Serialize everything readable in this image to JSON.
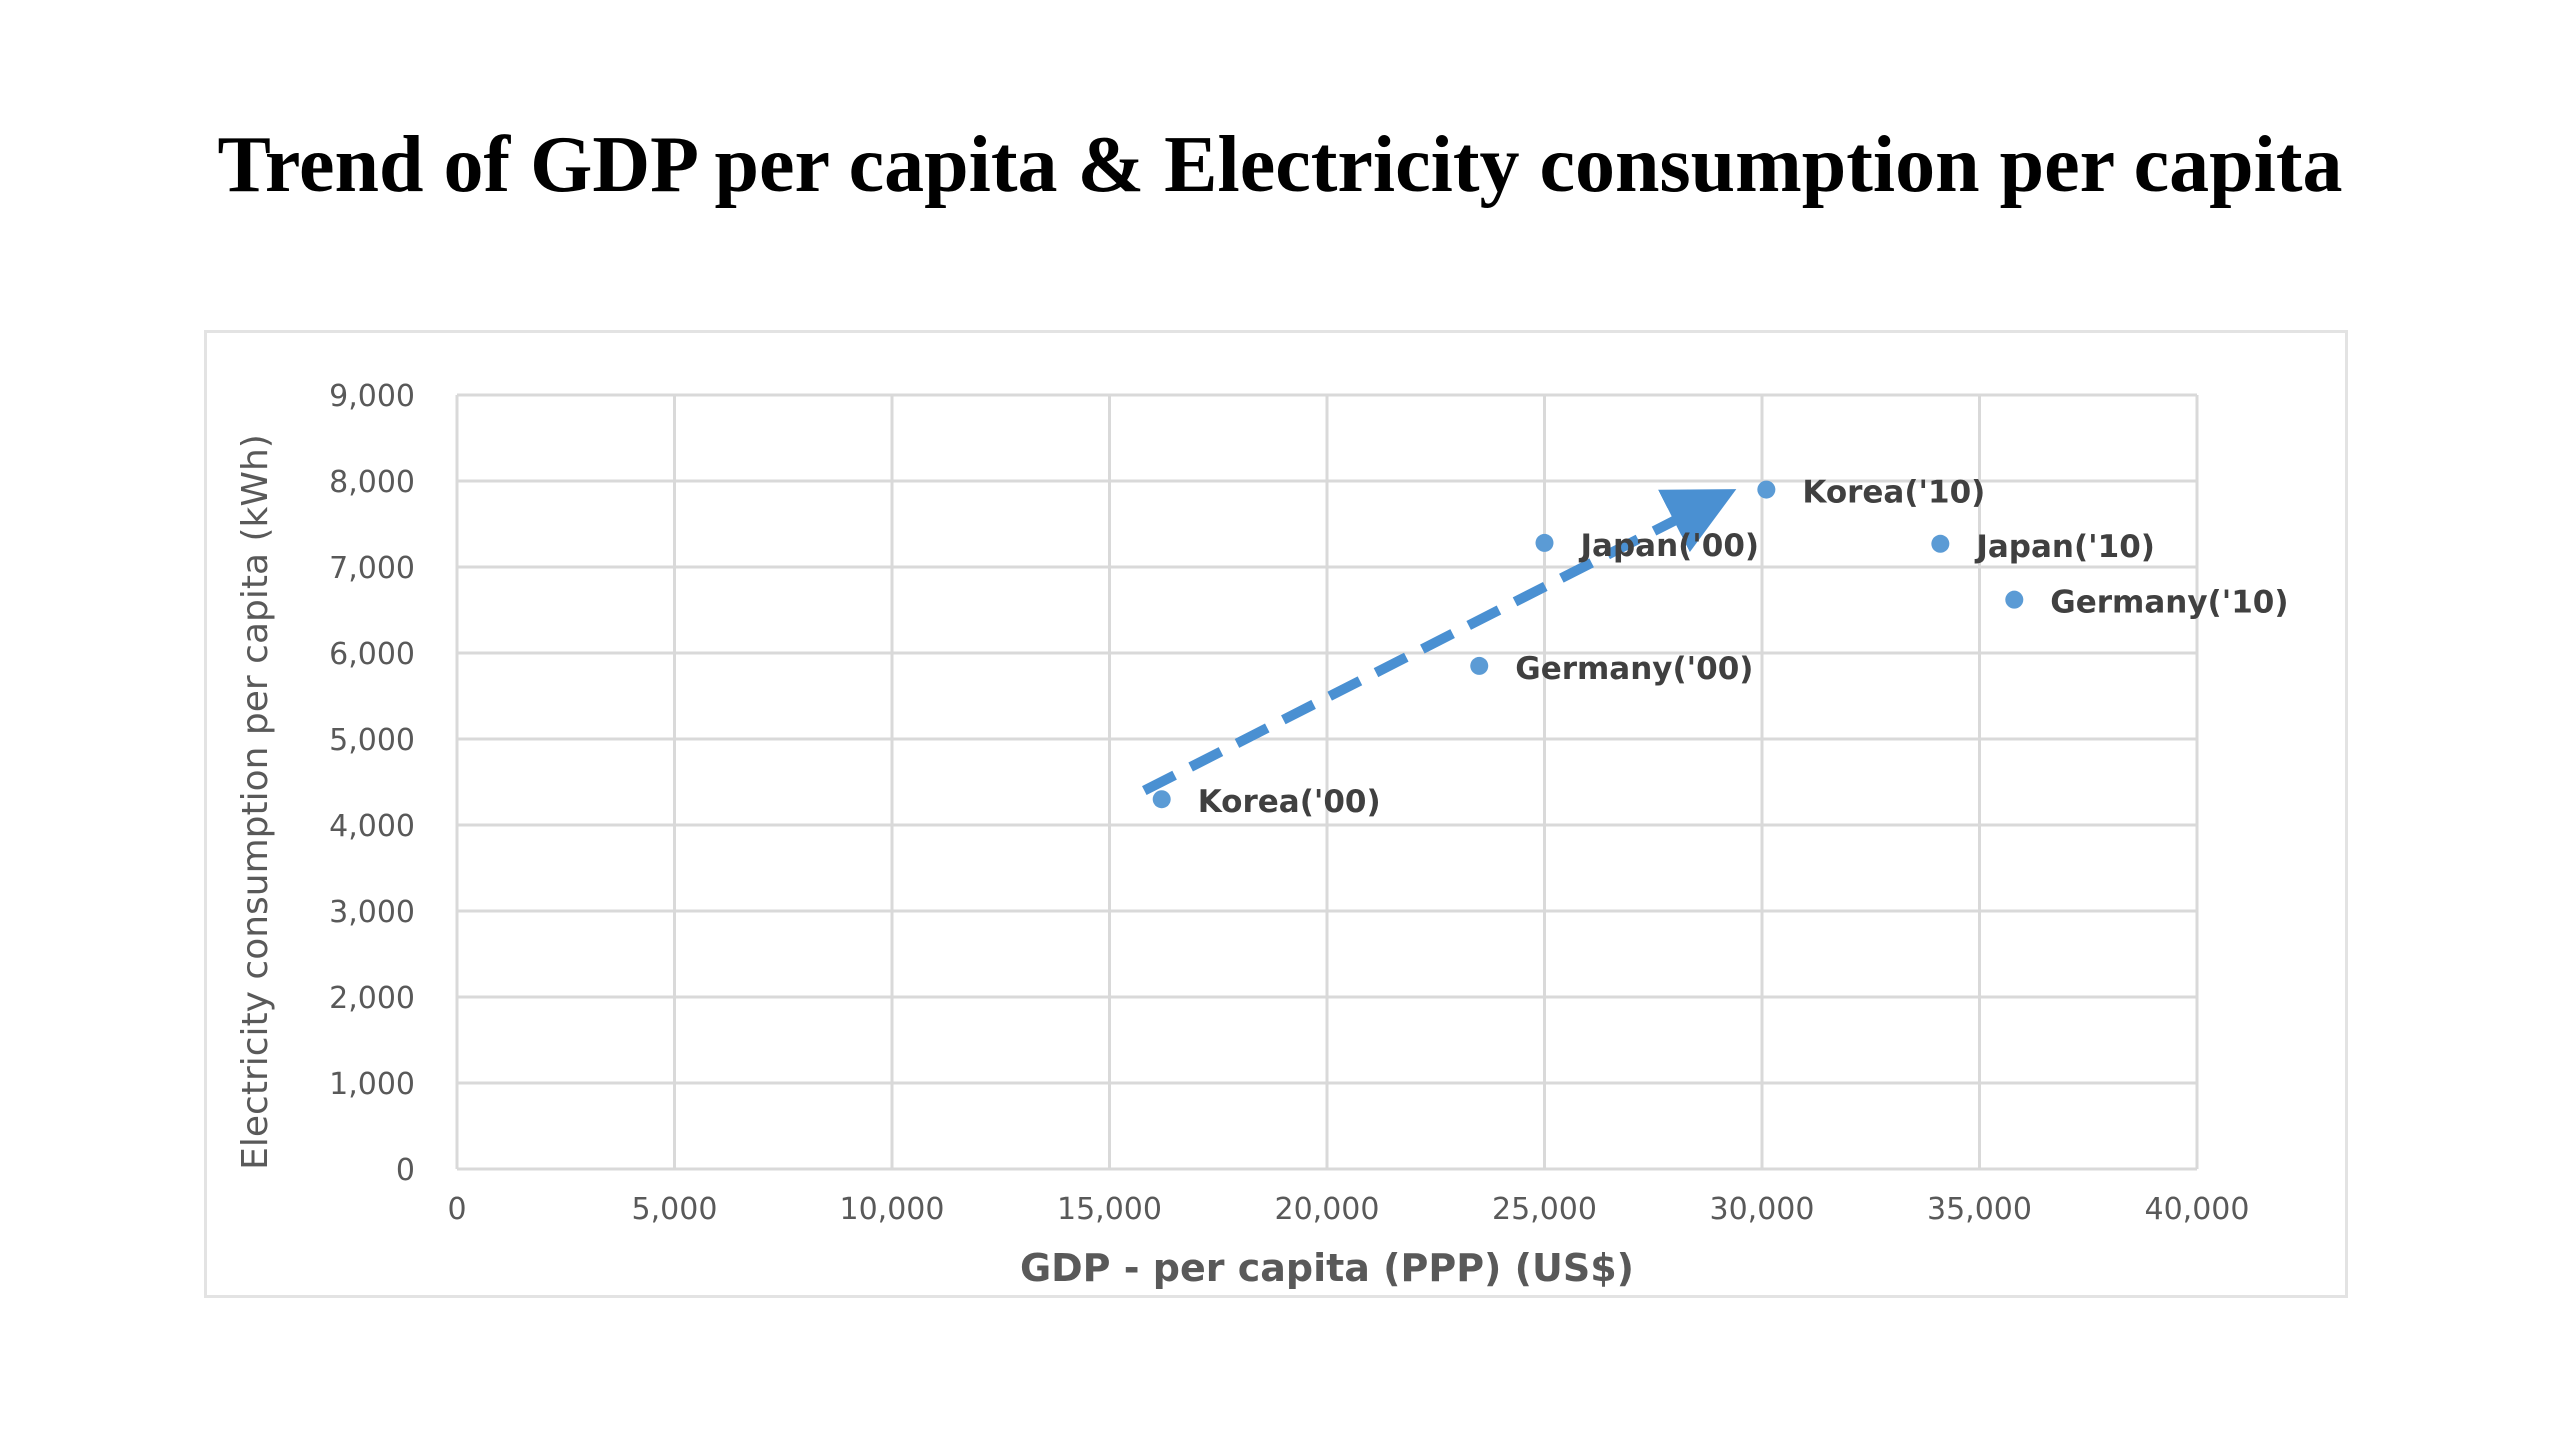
{
  "slide": {
    "title": "Trend of GDP per capita & Electricity consumption per capita"
  },
  "chart_data": {
    "type": "scatter",
    "title": "Trend of GDP per capita & Electricity consumption per capita",
    "xlabel": "GDP - per capita (PPP)  (US$)",
    "ylabel": "Electricity consumption per capita (kWh)",
    "xlim": [
      0,
      40000
    ],
    "ylim": [
      0,
      9000
    ],
    "x_ticks": [
      0,
      5000,
      10000,
      15000,
      20000,
      25000,
      30000,
      35000,
      40000
    ],
    "x_tick_labels": [
      "0",
      "5,000",
      "10,000",
      "15,000",
      "20,000",
      "25,000",
      "30,000",
      "35,000",
      "40,000"
    ],
    "y_ticks": [
      0,
      1000,
      2000,
      3000,
      4000,
      5000,
      6000,
      7000,
      8000,
      9000
    ],
    "y_tick_labels": [
      "0",
      "1,000",
      "2,000",
      "3,000",
      "4,000",
      "5,000",
      "6,000",
      "7,000",
      "8,000",
      "9,000"
    ],
    "grid": true,
    "legend": "none",
    "points": [
      {
        "label": "Korea('00)",
        "x": 16200,
        "y": 4300
      },
      {
        "label": "Germany('00)",
        "x": 23500,
        "y": 5850
      },
      {
        "label": "Japan('00)",
        "x": 25000,
        "y": 7280
      },
      {
        "label": "Korea('10)",
        "x": 30100,
        "y": 7900
      },
      {
        "label": "Japan('10)",
        "x": 34100,
        "y": 7270
      },
      {
        "label": "Germany('10)",
        "x": 35800,
        "y": 6620
      }
    ],
    "annotations": [
      {
        "type": "dashed-arrow",
        "from": {
          "x": 15800,
          "y": 4400
        },
        "to": {
          "x": 29000,
          "y": 7800
        }
      }
    ],
    "colors": {
      "marker": "#5b9bd5",
      "arrow": "#4a90d2",
      "grid": "#d9d9d9",
      "tick_text": "#595959",
      "axis_title": "#595959"
    }
  }
}
